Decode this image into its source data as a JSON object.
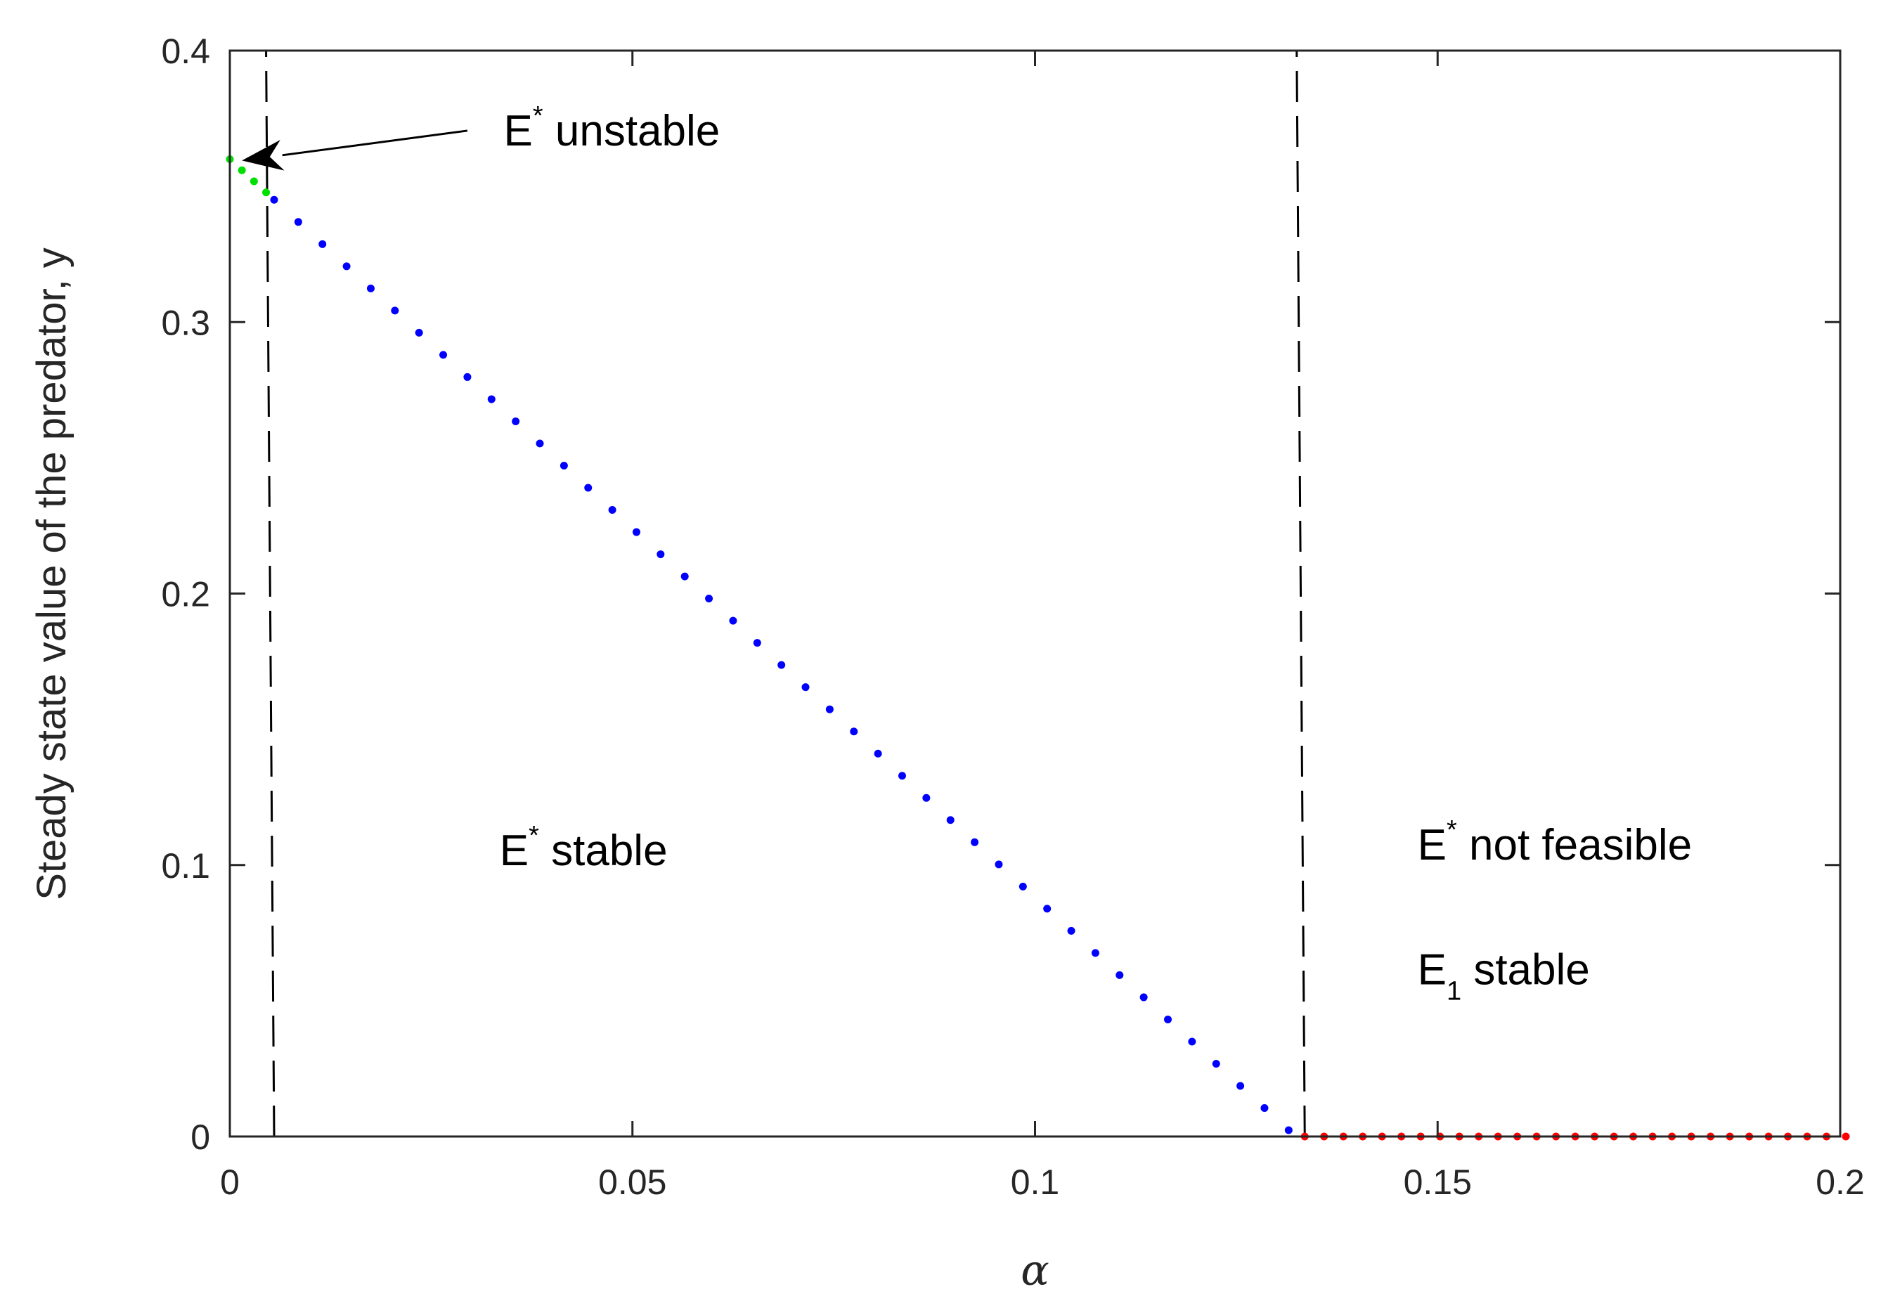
{
  "chart_data": {
    "type": "scatter",
    "xlabel": "α",
    "ylabel": "Steady state value of the predator, y",
    "xlim": [
      0,
      0.2
    ],
    "ylim": [
      0,
      0.4
    ],
    "x_ticks": [
      0,
      0.05,
      0.1,
      0.15,
      0.2
    ],
    "x_tick_labels": [
      "0",
      "0.05",
      "0.1",
      "0.15",
      "0.2"
    ],
    "y_ticks": [
      0,
      0.1,
      0.2,
      0.3,
      0.4
    ],
    "y_tick_labels": [
      "0",
      "0.1",
      "0.2",
      "0.3",
      "0.4"
    ],
    "grid": false,
    "series": [
      {
        "color": "#00e000",
        "x_start": 0.0,
        "x_end": 0.0045,
        "x_step": 0.0015,
        "y_at_x0": 0.36,
        "slope": -2.72
      },
      {
        "color": "#0000ff",
        "x_start": 0.0055,
        "x_end": 0.1315,
        "x_step": 0.003,
        "y_at_x0": 0.36,
        "slope": -2.72
      },
      {
        "color": "#ff0000",
        "x_start": 0.1335,
        "x_end": 0.2,
        "x_step": 0.0024,
        "y_at_x0": 0.0,
        "slope": 0.0
      }
    ],
    "vlines": [
      {
        "x_bottom": 0.0055,
        "x_top": 0.0045,
        "style": "dashed",
        "color": "#000000"
      },
      {
        "x_bottom": 0.1335,
        "x_top": 0.1325,
        "style": "dashed",
        "color": "#000000"
      }
    ],
    "annotations": [
      {
        "main": "E",
        "sup": "*",
        "rest": " unstable",
        "x": 0.034,
        "y": 0.365
      },
      {
        "main": "E",
        "sup": "*",
        "rest": " stable",
        "x": 0.0335,
        "y": 0.1
      },
      {
        "main": "E",
        "sup": "*",
        "rest": " not feasible",
        "x": 0.1475,
        "y": 0.102
      },
      {
        "main": "E",
        "sub": "1",
        "rest": " stable",
        "x": 0.1475,
        "y": 0.056
      }
    ],
    "arrow": {
      "from_x": 0.0295,
      "from_y": 0.3705,
      "to_x": 0.0015,
      "to_y": 0.3595
    }
  }
}
